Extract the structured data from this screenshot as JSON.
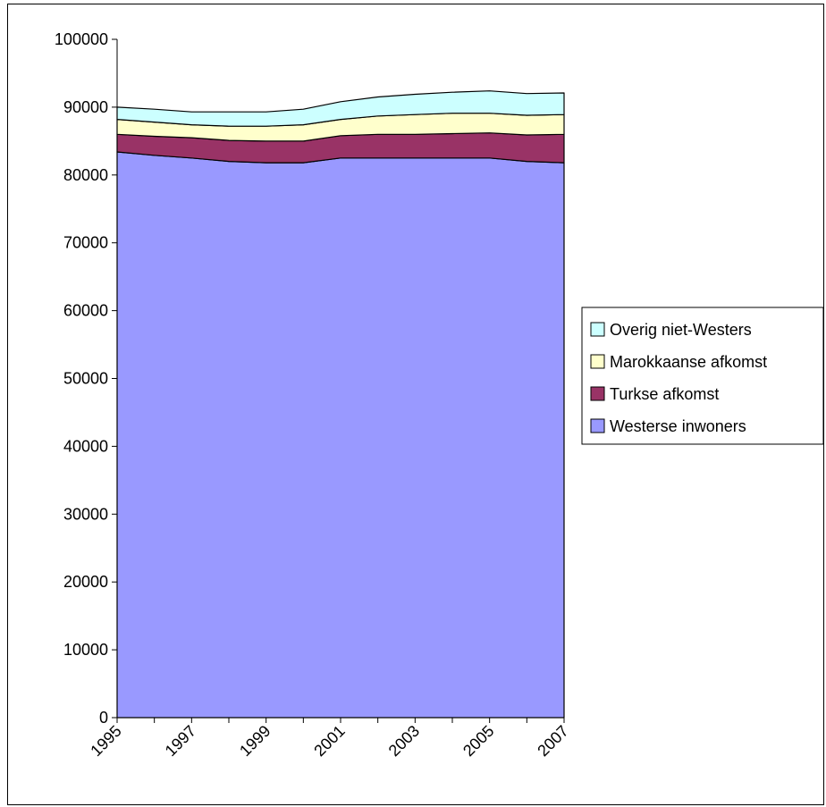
{
  "chart_data": {
    "type": "area",
    "stacked": true,
    "x": [
      1995,
      1996,
      1997,
      1998,
      1999,
      2000,
      2001,
      2002,
      2003,
      2004,
      2005,
      2006,
      2007
    ],
    "x_tick_labels": [
      "1995",
      "1997",
      "1999",
      "2001",
      "2003",
      "2005",
      "2007"
    ],
    "y_ticks": [
      0,
      10000,
      20000,
      30000,
      40000,
      50000,
      60000,
      70000,
      80000,
      90000,
      100000
    ],
    "ylim": [
      0,
      100000
    ],
    "grid": false,
    "legend_position": "right",
    "series": [
      {
        "name": "Westerse inwoners",
        "color": "#9999ff",
        "values": [
          83400,
          82900,
          82500,
          82000,
          81800,
          81800,
          82500,
          82500,
          82500,
          82500,
          82500,
          82000,
          81800
        ]
      },
      {
        "name": "Turkse afkomst",
        "color": "#993366",
        "values": [
          2600,
          2800,
          3000,
          3100,
          3200,
          3200,
          3300,
          3500,
          3500,
          3600,
          3700,
          3900,
          4200
        ]
      },
      {
        "name": "Marokkaanse afkomst",
        "color": "#ffffcc",
        "values": [
          2200,
          2100,
          1900,
          2100,
          2200,
          2400,
          2400,
          2700,
          2900,
          3000,
          2900,
          2900,
          2900
        ]
      },
      {
        "name": "Overig niet-Westers",
        "color": "#ccffff",
        "values": [
          1800,
          1900,
          1900,
          2100,
          2100,
          2300,
          2600,
          2800,
          3000,
          3100,
          3300,
          3200,
          3200
        ]
      }
    ]
  }
}
